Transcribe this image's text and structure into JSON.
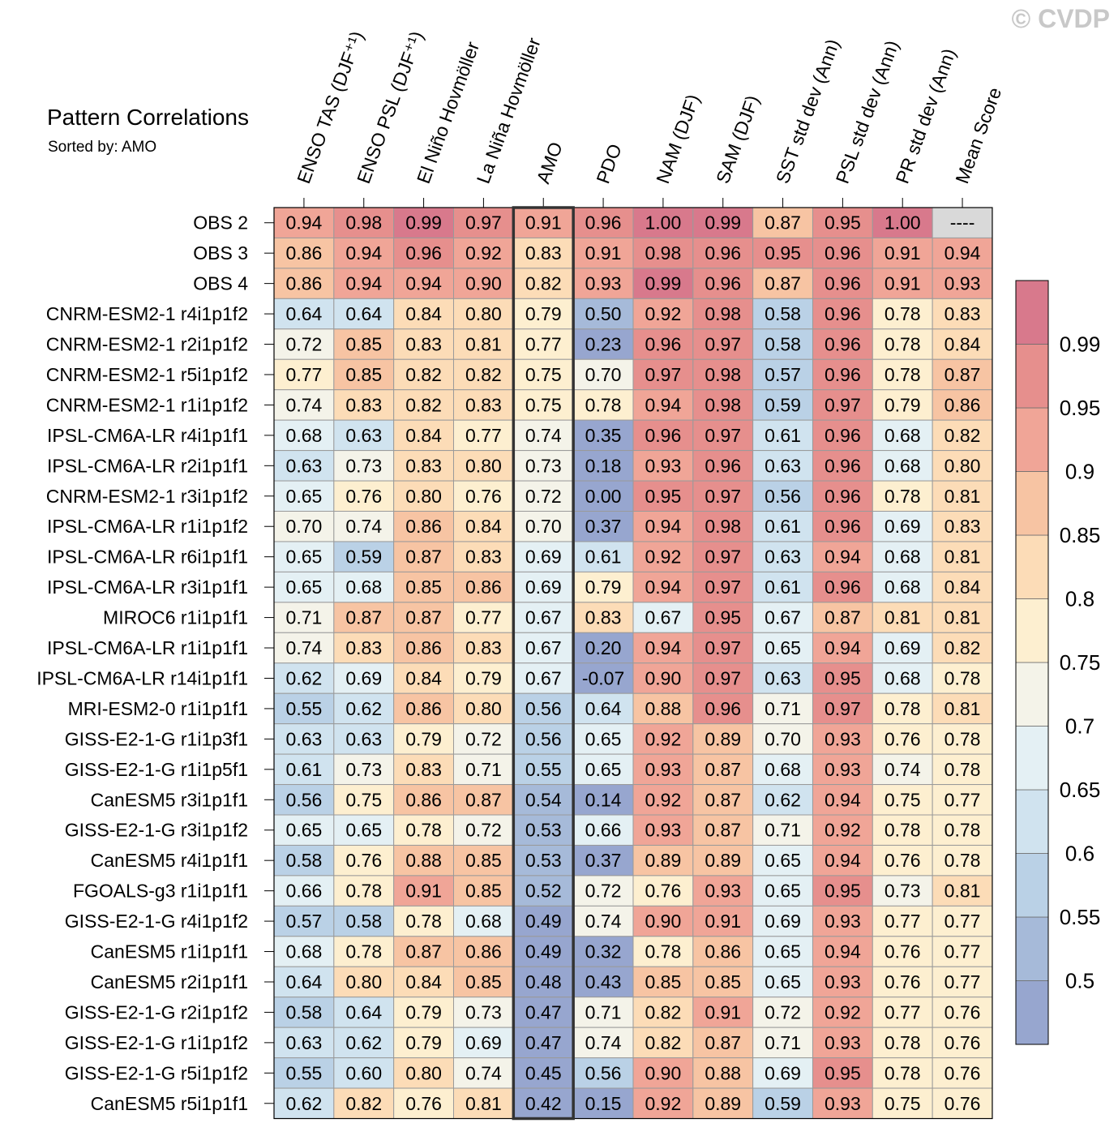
{
  "watermark": "© CVDP",
  "chart_data": {
    "type": "heatmap",
    "title": "Pattern Correlations",
    "subtitle": "Sorted by: AMO",
    "highlighted_column": "AMO",
    "columns": [
      "ENSO TAS (DJF⁺¹)",
      "ENSO PSL (DJF⁺¹)",
      "El Niño Hovmöller",
      "La Niña Hovmöller",
      "AMO",
      "PDO",
      "NAM (DJF)",
      "SAM (DJF)",
      "SST std dev (Ann)",
      "PSL std dev (Ann)",
      "PR std dev (Ann)",
      "Mean Score"
    ],
    "rows": [
      {
        "name": "OBS 2",
        "values": [
          "0.94",
          "0.98",
          "0.99",
          "0.97",
          "0.91",
          "0.96",
          "1.00",
          "0.99",
          "0.87",
          "0.95",
          "1.00",
          "----"
        ]
      },
      {
        "name": "OBS 3",
        "values": [
          "0.86",
          "0.94",
          "0.96",
          "0.92",
          "0.83",
          "0.91",
          "0.98",
          "0.96",
          "0.95",
          "0.96",
          "0.91",
          "0.94"
        ]
      },
      {
        "name": "OBS 4",
        "values": [
          "0.86",
          "0.94",
          "0.94",
          "0.90",
          "0.82",
          "0.93",
          "0.99",
          "0.96",
          "0.87",
          "0.96",
          "0.91",
          "0.93"
        ]
      },
      {
        "name": "CNRM-ESM2-1 r4i1p1f2",
        "values": [
          "0.64",
          "0.64",
          "0.84",
          "0.80",
          "0.79",
          "0.50",
          "0.92",
          "0.98",
          "0.58",
          "0.96",
          "0.78",
          "0.83"
        ]
      },
      {
        "name": "CNRM-ESM2-1 r2i1p1f2",
        "values": [
          "0.72",
          "0.85",
          "0.83",
          "0.81",
          "0.77",
          "0.23",
          "0.96",
          "0.97",
          "0.58",
          "0.96",
          "0.78",
          "0.84"
        ]
      },
      {
        "name": "CNRM-ESM2-1 r5i1p1f2",
        "values": [
          "0.77",
          "0.85",
          "0.82",
          "0.82",
          "0.75",
          "0.70",
          "0.97",
          "0.98",
          "0.57",
          "0.96",
          "0.78",
          "0.87"
        ]
      },
      {
        "name": "CNRM-ESM2-1 r1i1p1f2",
        "values": [
          "0.74",
          "0.83",
          "0.82",
          "0.83",
          "0.75",
          "0.78",
          "0.94",
          "0.98",
          "0.59",
          "0.97",
          "0.79",
          "0.86"
        ]
      },
      {
        "name": "IPSL-CM6A-LR r4i1p1f1",
        "values": [
          "0.68",
          "0.63",
          "0.84",
          "0.77",
          "0.74",
          "0.35",
          "0.96",
          "0.97",
          "0.61",
          "0.96",
          "0.68",
          "0.82"
        ]
      },
      {
        "name": "IPSL-CM6A-LR r2i1p1f1",
        "values": [
          "0.63",
          "0.73",
          "0.83",
          "0.80",
          "0.73",
          "0.18",
          "0.93",
          "0.96",
          "0.63",
          "0.96",
          "0.68",
          "0.80"
        ]
      },
      {
        "name": "CNRM-ESM2-1 r3i1p1f2",
        "values": [
          "0.65",
          "0.76",
          "0.80",
          "0.76",
          "0.72",
          "0.00",
          "0.95",
          "0.97",
          "0.56",
          "0.96",
          "0.78",
          "0.81"
        ]
      },
      {
        "name": "IPSL-CM6A-LR r1i1p1f2",
        "values": [
          "0.70",
          "0.74",
          "0.86",
          "0.84",
          "0.70",
          "0.37",
          "0.94",
          "0.98",
          "0.61",
          "0.96",
          "0.69",
          "0.83"
        ]
      },
      {
        "name": "IPSL-CM6A-LR r6i1p1f1",
        "values": [
          "0.65",
          "0.59",
          "0.87",
          "0.83",
          "0.69",
          "0.61",
          "0.92",
          "0.97",
          "0.63",
          "0.94",
          "0.68",
          "0.81"
        ]
      },
      {
        "name": "IPSL-CM6A-LR r3i1p1f1",
        "values": [
          "0.65",
          "0.68",
          "0.85",
          "0.86",
          "0.69",
          "0.79",
          "0.94",
          "0.97",
          "0.61",
          "0.96",
          "0.68",
          "0.84"
        ]
      },
      {
        "name": "MIROC6 r1i1p1f1",
        "values": [
          "0.71",
          "0.87",
          "0.87",
          "0.77",
          "0.67",
          "0.83",
          "0.67",
          "0.95",
          "0.67",
          "0.87",
          "0.81",
          "0.81"
        ]
      },
      {
        "name": "IPSL-CM6A-LR r1i1p1f1",
        "values": [
          "0.74",
          "0.83",
          "0.86",
          "0.83",
          "0.67",
          "0.20",
          "0.94",
          "0.97",
          "0.65",
          "0.94",
          "0.69",
          "0.82"
        ]
      },
      {
        "name": "IPSL-CM6A-LR r14i1p1f1",
        "values": [
          "0.62",
          "0.69",
          "0.84",
          "0.79",
          "0.67",
          "-0.07",
          "0.90",
          "0.97",
          "0.63",
          "0.95",
          "0.68",
          "0.78"
        ]
      },
      {
        "name": "MRI-ESM2-0 r1i1p1f1",
        "values": [
          "0.55",
          "0.62",
          "0.86",
          "0.80",
          "0.56",
          "0.64",
          "0.88",
          "0.96",
          "0.71",
          "0.97",
          "0.78",
          "0.81"
        ]
      },
      {
        "name": "GISS-E2-1-G r1i1p3f1",
        "values": [
          "0.63",
          "0.63",
          "0.79",
          "0.72",
          "0.56",
          "0.65",
          "0.92",
          "0.89",
          "0.70",
          "0.93",
          "0.76",
          "0.78"
        ]
      },
      {
        "name": "GISS-E2-1-G r1i1p5f1",
        "values": [
          "0.61",
          "0.73",
          "0.83",
          "0.71",
          "0.55",
          "0.65",
          "0.93",
          "0.87",
          "0.68",
          "0.93",
          "0.74",
          "0.78"
        ]
      },
      {
        "name": "CanESM5 r3i1p1f1",
        "values": [
          "0.56",
          "0.75",
          "0.86",
          "0.87",
          "0.54",
          "0.14",
          "0.92",
          "0.87",
          "0.62",
          "0.94",
          "0.75",
          "0.77"
        ]
      },
      {
        "name": "GISS-E2-1-G r3i1p1f2",
        "values": [
          "0.65",
          "0.65",
          "0.78",
          "0.72",
          "0.53",
          "0.66",
          "0.93",
          "0.87",
          "0.71",
          "0.92",
          "0.78",
          "0.78"
        ]
      },
      {
        "name": "CanESM5 r4i1p1f1",
        "values": [
          "0.58",
          "0.76",
          "0.88",
          "0.85",
          "0.53",
          "0.37",
          "0.89",
          "0.89",
          "0.65",
          "0.94",
          "0.76",
          "0.78"
        ]
      },
      {
        "name": "FGOALS-g3 r1i1p1f1",
        "values": [
          "0.66",
          "0.78",
          "0.91",
          "0.85",
          "0.52",
          "0.72",
          "0.76",
          "0.93",
          "0.65",
          "0.95",
          "0.73",
          "0.81"
        ]
      },
      {
        "name": "GISS-E2-1-G r4i1p1f2",
        "values": [
          "0.57",
          "0.58",
          "0.78",
          "0.68",
          "0.49",
          "0.74",
          "0.90",
          "0.91",
          "0.69",
          "0.93",
          "0.77",
          "0.77"
        ]
      },
      {
        "name": "CanESM5 r1i1p1f1",
        "values": [
          "0.68",
          "0.78",
          "0.87",
          "0.86",
          "0.49",
          "0.32",
          "0.78",
          "0.86",
          "0.65",
          "0.94",
          "0.76",
          "0.77"
        ]
      },
      {
        "name": "CanESM5 r2i1p1f1",
        "values": [
          "0.64",
          "0.80",
          "0.84",
          "0.85",
          "0.48",
          "0.43",
          "0.85",
          "0.85",
          "0.65",
          "0.93",
          "0.76",
          "0.77"
        ]
      },
      {
        "name": "GISS-E2-1-G r2i1p1f2",
        "values": [
          "0.58",
          "0.64",
          "0.79",
          "0.73",
          "0.47",
          "0.71",
          "0.82",
          "0.91",
          "0.72",
          "0.92",
          "0.77",
          "0.76"
        ]
      },
      {
        "name": "GISS-E2-1-G r1i1p1f2",
        "values": [
          "0.63",
          "0.62",
          "0.79",
          "0.69",
          "0.47",
          "0.74",
          "0.82",
          "0.87",
          "0.71",
          "0.93",
          "0.78",
          "0.76"
        ]
      },
      {
        "name": "GISS-E2-1-G r5i1p1f2",
        "values": [
          "0.55",
          "0.60",
          "0.80",
          "0.74",
          "0.45",
          "0.56",
          "0.90",
          "0.88",
          "0.69",
          "0.95",
          "0.78",
          "0.76"
        ]
      },
      {
        "name": "CanESM5 r5i1p1f1",
        "values": [
          "0.62",
          "0.82",
          "0.76",
          "0.81",
          "0.42",
          "0.15",
          "0.92",
          "0.89",
          "0.59",
          "0.93",
          "0.75",
          "0.76"
        ]
      }
    ],
    "colorbar": {
      "levels": [
        0.5,
        0.55,
        0.6,
        0.65,
        0.7,
        0.75,
        0.8,
        0.85,
        0.9,
        0.95,
        0.99
      ],
      "labels": [
        "0.5",
        "0.55",
        "0.6",
        "0.65",
        "0.7",
        "0.75",
        "0.8",
        "0.85",
        "0.9",
        "0.95",
        "0.99"
      ],
      "colors": [
        "#97a6cf",
        "#a6bad9",
        "#bad1e6",
        "#d0e3ef",
        "#e4f0f4",
        "#f4f3e9",
        "#fdefd0",
        "#fcdcb7",
        "#f7c4a3",
        "#f0a597",
        "#e68f8d",
        "#d8798c"
      ],
      "missing_color": "#d9d9d9",
      "highest_level_marker": "0.995"
    }
  }
}
